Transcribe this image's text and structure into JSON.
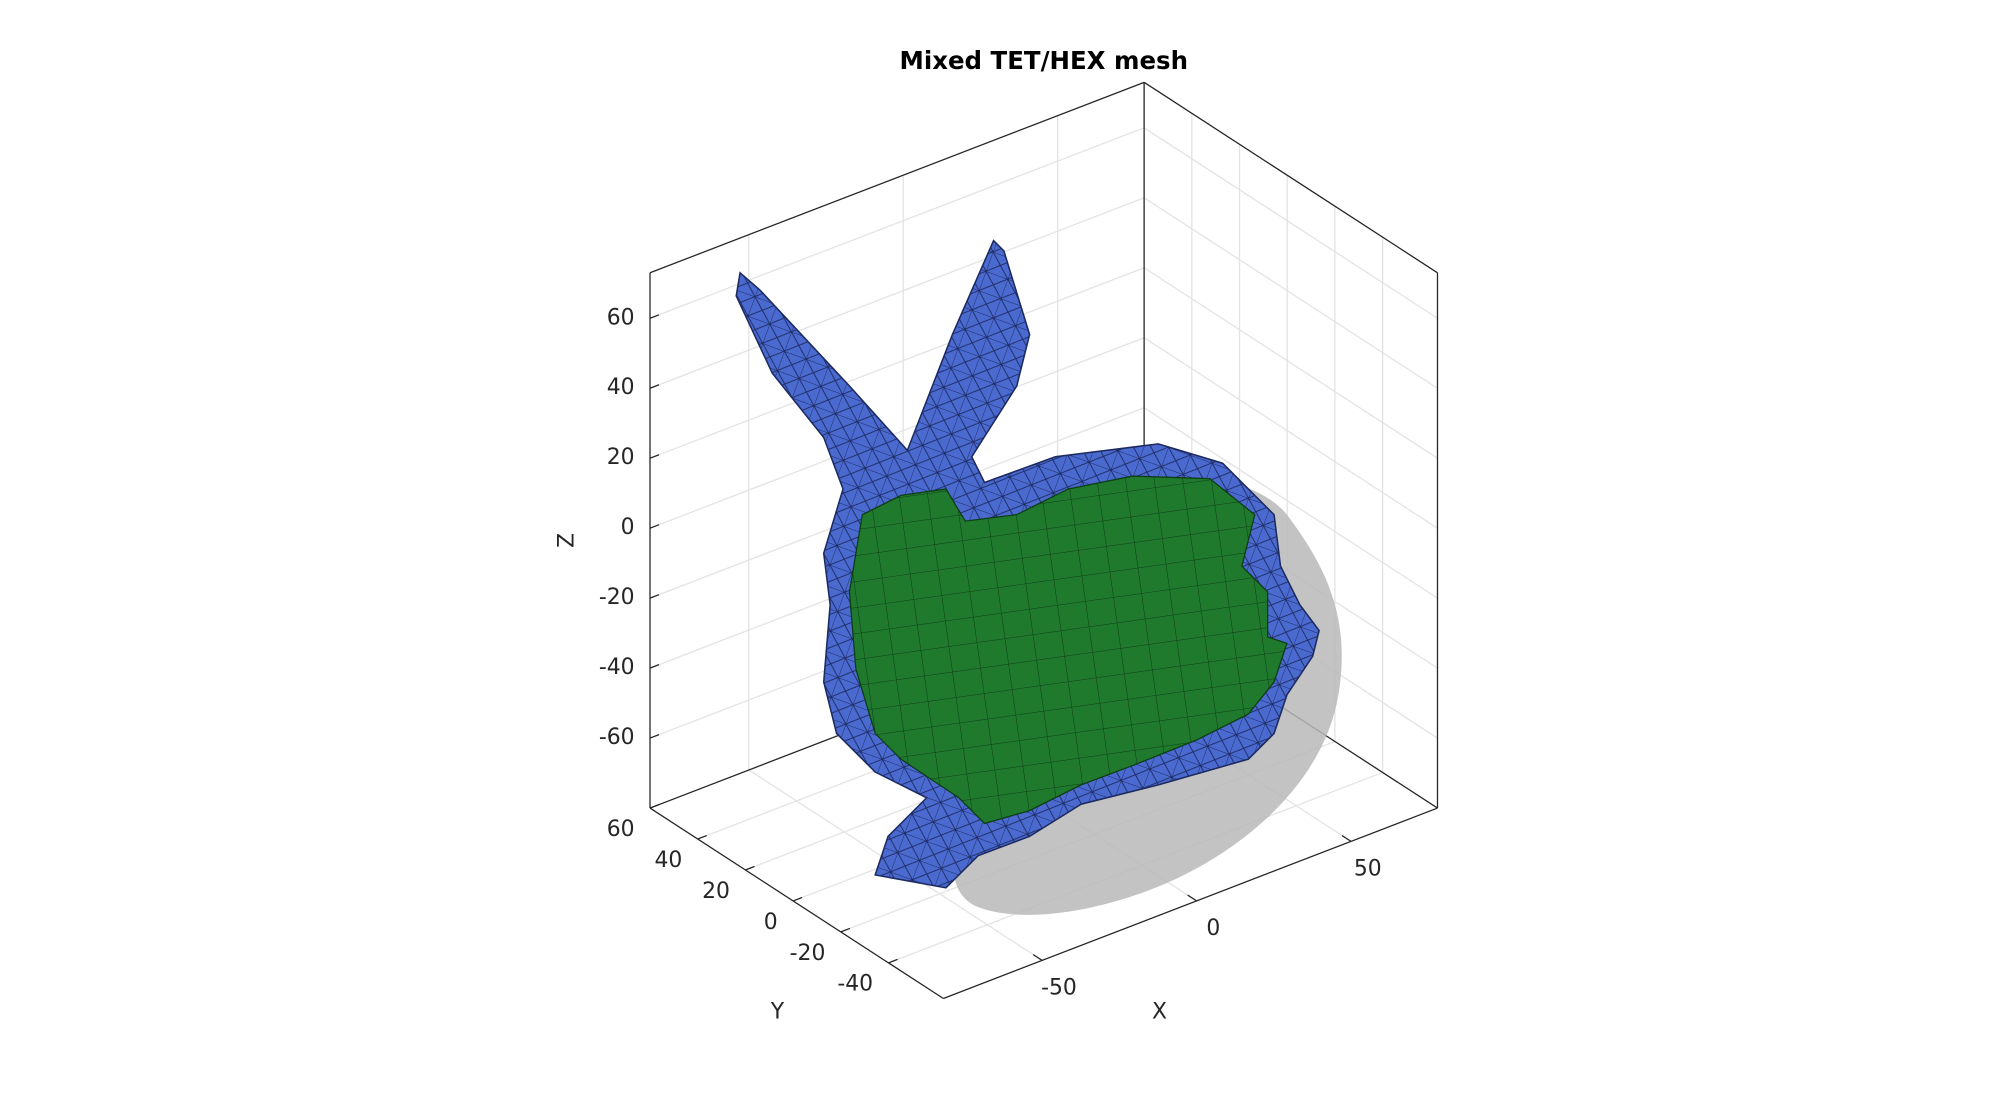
{
  "chart_data": {
    "type": "mesh3d",
    "title": "Mixed TET/HEX mesh",
    "xlabel": "X",
    "ylabel": "Y",
    "zlabel": "Z",
    "xlim": [
      -82,
      78
    ],
    "ylim": [
      -63,
      60
    ],
    "zlim": [
      -80,
      73
    ],
    "xticks": [
      -50,
      0,
      50
    ],
    "yticks": [
      -40,
      -20,
      0,
      20,
      40,
      60
    ],
    "zticks": [
      -60,
      -40,
      -20,
      0,
      20,
      40,
      60
    ],
    "grid": true
  }
}
